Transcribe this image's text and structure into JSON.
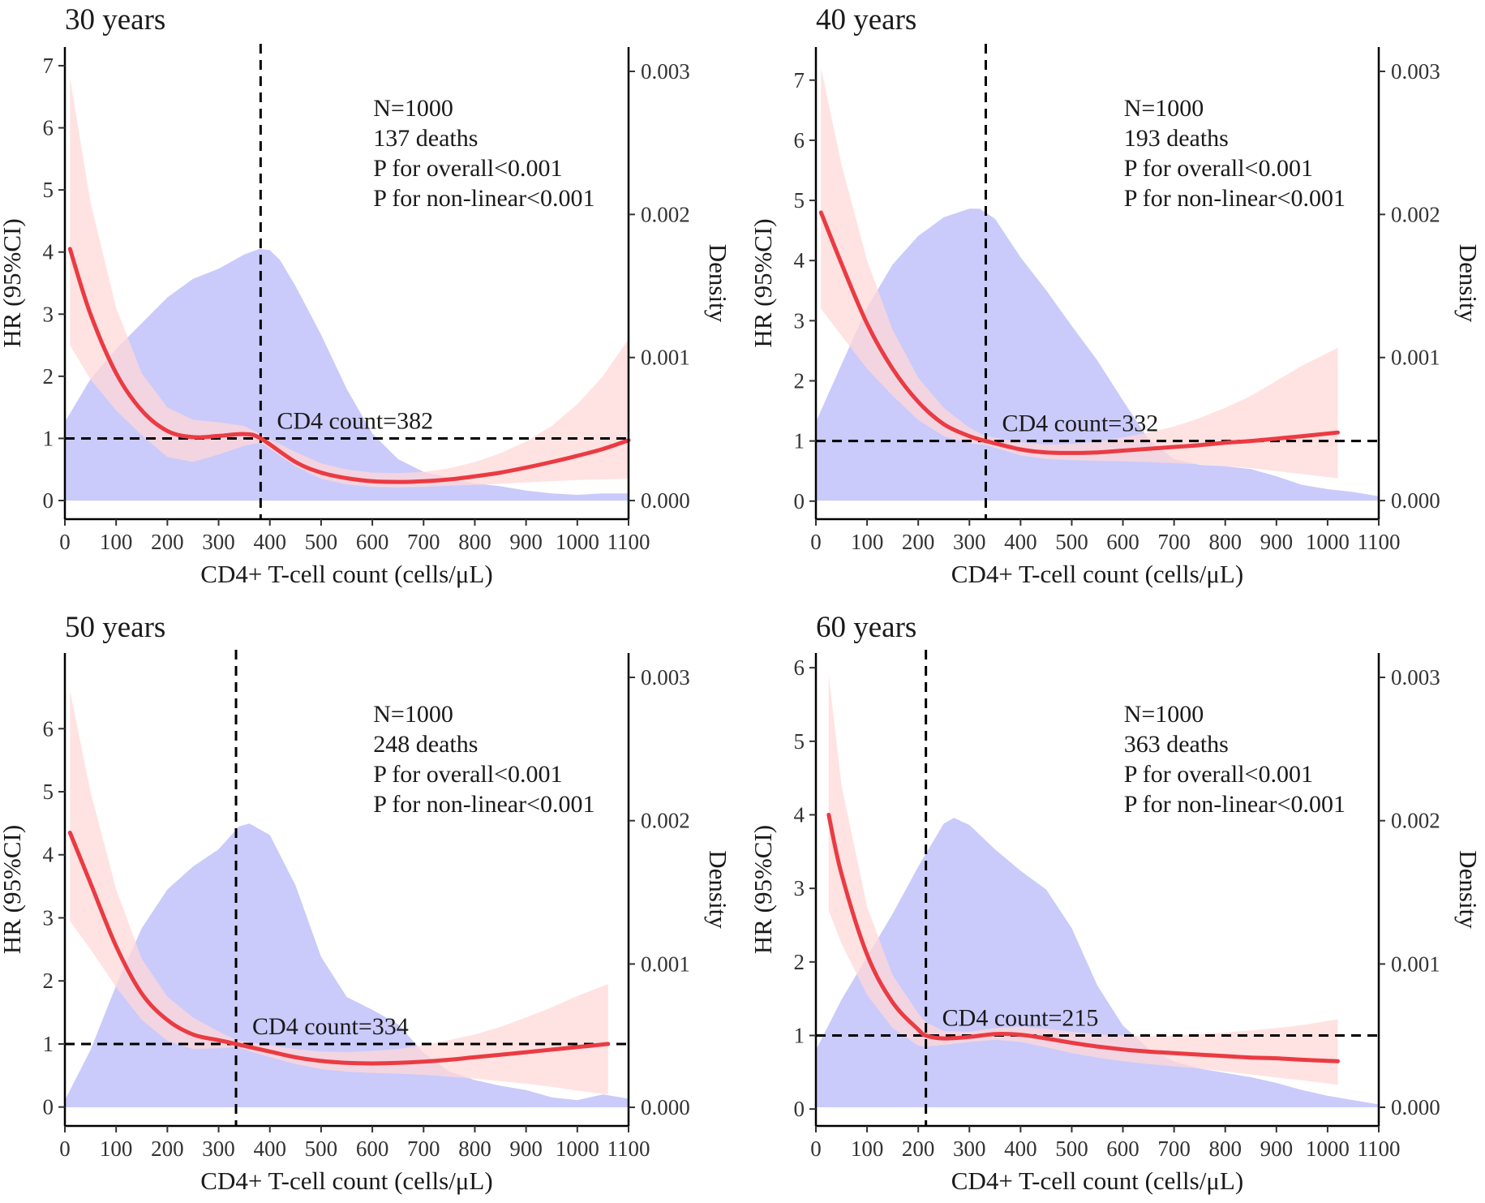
{
  "colors": {
    "density_fill": "#c7c7fb",
    "ci_fill": "#ffd8d8",
    "hr_line": "#ea3b43",
    "reference": "#000000"
  },
  "chart_data": [
    {
      "type": "line",
      "title": "30 years",
      "xlabel": "CD4+ T-cell count (cells/μL)",
      "ylabel": "HR (95%CI)",
      "y2label": "Density",
      "xlim": [
        0,
        1100
      ],
      "ylim": [
        -0.3,
        7.3
      ],
      "y2lim": [
        -0.00013,
        0.00317
      ],
      "xticks": [
        0,
        100,
        200,
        300,
        400,
        500,
        600,
        700,
        800,
        900,
        1000,
        1100
      ],
      "yticks": [
        0,
        1,
        2,
        3,
        4,
        5,
        6,
        7
      ],
      "y2ticks": [
        "0.000",
        "0.001",
        "0.002",
        "0.003"
      ],
      "annotation": [
        "N=1000",
        "137 deaths",
        "P for overall<0.001",
        "P for non-linear<0.001"
      ],
      "cutoff": 382,
      "cutoff_label": "CD4 count=382",
      "reference_hr": 1,
      "hr": {
        "x": [
          10,
          50,
          100,
          150,
          200,
          250,
          300,
          350,
          382,
          450,
          500,
          550,
          600,
          650,
          700,
          750,
          800,
          850,
          900,
          950,
          1000,
          1050,
          1100
        ],
        "y": [
          4.05,
          3.0,
          2.05,
          1.45,
          1.12,
          1.02,
          1.04,
          1.07,
          1.0,
          0.62,
          0.45,
          0.36,
          0.31,
          0.3,
          0.31,
          0.34,
          0.39,
          0.45,
          0.53,
          0.62,
          0.72,
          0.83,
          0.97
        ],
        "lower": [
          2.5,
          1.95,
          1.45,
          1.05,
          0.7,
          0.62,
          0.74,
          0.88,
          0.93,
          0.55,
          0.35,
          0.26,
          0.22,
          0.21,
          0.22,
          0.24,
          0.25,
          0.27,
          0.29,
          0.31,
          0.33,
          0.34,
          0.35
        ],
        "upper": [
          6.8,
          4.8,
          3.1,
          2.05,
          1.5,
          1.3,
          1.26,
          1.2,
          1.07,
          0.78,
          0.6,
          0.5,
          0.45,
          0.44,
          0.46,
          0.52,
          0.62,
          0.76,
          0.95,
          1.2,
          1.55,
          2.0,
          2.6
        ]
      },
      "density": {
        "x": [
          0,
          50,
          100,
          150,
          200,
          250,
          300,
          350,
          380,
          400,
          420,
          450,
          500,
          550,
          600,
          650,
          700,
          750,
          800,
          850,
          900,
          950,
          1000,
          1050,
          1100
        ],
        "y": [
          0.00055,
          0.00085,
          0.00106,
          0.00124,
          0.00142,
          0.00155,
          0.00162,
          0.00172,
          0.00176,
          0.00175,
          0.00168,
          0.0015,
          0.00116,
          0.00078,
          0.00047,
          0.00029,
          0.0002,
          0.00016,
          0.00012,
          0.0001,
          7e-05,
          5e-05,
          4e-05,
          5e-05,
          5e-05
        ]
      }
    },
    {
      "type": "line",
      "title": "40 years",
      "xlabel": "CD4+ T-cell count (cells/μL)",
      "ylabel": "HR (95%CI)",
      "y2label": "Density",
      "xlim": [
        0,
        1100
      ],
      "ylim": [
        -0.3,
        7.55
      ],
      "y2lim": [
        -0.00013,
        0.00317
      ],
      "xticks": [
        0,
        100,
        200,
        300,
        400,
        500,
        600,
        700,
        800,
        900,
        1000,
        1100
      ],
      "yticks": [
        0,
        1,
        2,
        3,
        4,
        5,
        6,
        7
      ],
      "y2ticks": [
        "0.000",
        "0.001",
        "0.002",
        "0.003"
      ],
      "annotation": [
        "N=1000",
        "193 deaths",
        "P for overall<0.001",
        "P for non-linear<0.001"
      ],
      "cutoff": 332,
      "cutoff_label": "CD4 count=332",
      "reference_hr": 1,
      "hr": {
        "x": [
          10,
          50,
          100,
          150,
          200,
          250,
          300,
          332,
          400,
          450,
          500,
          550,
          600,
          650,
          700,
          750,
          800,
          850,
          900,
          950,
          1020
        ],
        "y": [
          4.8,
          3.95,
          2.95,
          2.2,
          1.65,
          1.28,
          1.08,
          1.0,
          0.86,
          0.81,
          0.8,
          0.81,
          0.84,
          0.87,
          0.9,
          0.93,
          0.97,
          1.0,
          1.04,
          1.08,
          1.14
        ],
        "lower": [
          3.2,
          2.75,
          2.2,
          1.75,
          1.35,
          1.08,
          0.96,
          0.93,
          0.76,
          0.7,
          0.68,
          0.67,
          0.66,
          0.65,
          0.63,
          0.61,
          0.58,
          0.55,
          0.5,
          0.45,
          0.38
        ],
        "upper": [
          7.2,
          5.6,
          4.0,
          2.85,
          2.05,
          1.55,
          1.22,
          1.08,
          0.98,
          0.94,
          0.95,
          0.99,
          1.06,
          1.14,
          1.24,
          1.38,
          1.55,
          1.75,
          2.0,
          2.25,
          2.55
        ]
      },
      "density": {
        "x": [
          0,
          50,
          100,
          150,
          200,
          250,
          300,
          320,
          350,
          400,
          450,
          500,
          550,
          600,
          650,
          700,
          750,
          800,
          850,
          900,
          950,
          1000,
          1050,
          1100
        ],
        "y": [
          0.00055,
          0.00095,
          0.00135,
          0.00165,
          0.00185,
          0.00198,
          0.00204,
          0.00204,
          0.00197,
          0.0017,
          0.00147,
          0.00122,
          0.00098,
          0.0007,
          0.00043,
          0.00029,
          0.00025,
          0.00024,
          0.00022,
          0.00017,
          0.00011,
          8e-05,
          6e-05,
          3e-05
        ]
      }
    },
    {
      "type": "line",
      "title": "50 years",
      "xlabel": "CD4+ T-cell count (cells/μL)",
      "ylabel": "HR (95%CI)",
      "y2label": "Density",
      "xlim": [
        0,
        1100
      ],
      "ylim": [
        -0.3,
        7.2
      ],
      "y2lim": [
        -0.00013,
        0.00317
      ],
      "xticks": [
        0,
        100,
        200,
        300,
        400,
        500,
        600,
        700,
        800,
        900,
        1000,
        1100
      ],
      "yticks": [
        0,
        1,
        2,
        3,
        4,
        5,
        6
      ],
      "y2ticks": [
        "0.000",
        "0.001",
        "0.002",
        "0.003"
      ],
      "annotation": [
        "N=1000",
        "248 deaths",
        "P for overall<0.001",
        "P for non-linear<0.001"
      ],
      "cutoff": 334,
      "cutoff_label": "CD4 count=334",
      "reference_hr": 1,
      "hr": {
        "x": [
          10,
          50,
          100,
          150,
          200,
          250,
          300,
          334,
          400,
          450,
          500,
          550,
          600,
          650,
          700,
          750,
          800,
          850,
          900,
          950,
          1000,
          1060
        ],
        "y": [
          4.35,
          3.55,
          2.55,
          1.8,
          1.38,
          1.15,
          1.06,
          1.0,
          0.88,
          0.79,
          0.73,
          0.7,
          0.69,
          0.7,
          0.72,
          0.75,
          0.79,
          0.83,
          0.87,
          0.91,
          0.95,
          1.0
        ],
        "lower": [
          2.95,
          2.5,
          1.9,
          1.38,
          1.05,
          0.92,
          0.93,
          0.95,
          0.79,
          0.68,
          0.6,
          0.56,
          0.54,
          0.53,
          0.51,
          0.48,
          0.45,
          0.41,
          0.37,
          0.32,
          0.26,
          0.2
        ],
        "upper": [
          6.6,
          5.0,
          3.45,
          2.35,
          1.75,
          1.42,
          1.2,
          1.06,
          0.98,
          0.92,
          0.88,
          0.87,
          0.89,
          0.92,
          0.98,
          1.06,
          1.15,
          1.27,
          1.42,
          1.58,
          1.76,
          1.95
        ]
      },
      "density": {
        "x": [
          0,
          50,
          100,
          150,
          200,
          250,
          300,
          340,
          360,
          400,
          450,
          500,
          550,
          600,
          650,
          700,
          750,
          800,
          850,
          900,
          950,
          1000,
          1050,
          1100
        ],
        "y": [
          5e-05,
          0.0004,
          0.00085,
          0.00125,
          0.00152,
          0.00168,
          0.0018,
          0.00196,
          0.00198,
          0.0019,
          0.00155,
          0.00105,
          0.00077,
          0.00068,
          0.00058,
          0.00038,
          0.00025,
          0.00019,
          0.00015,
          0.00012,
          7e-05,
          5e-05,
          9e-05,
          6e-05
        ]
      }
    },
    {
      "type": "line",
      "title": "60 years",
      "xlabel": "CD4+ T-cell count (cells/μL)",
      "ylabel": "HR (95%CI)",
      "y2label": "Density",
      "xlim": [
        0,
        1100
      ],
      "ylim": [
        -0.23,
        6.2
      ],
      "y2lim": [
        -0.00013,
        0.00317
      ],
      "xticks": [
        0,
        100,
        200,
        300,
        400,
        500,
        600,
        700,
        800,
        900,
        1000,
        1100
      ],
      "yticks": [
        0,
        1,
        2,
        3,
        4,
        5,
        6
      ],
      "y2ticks": [
        "0.000",
        "0.001",
        "0.002",
        "0.003"
      ],
      "annotation": [
        "N=1000",
        "363 deaths",
        "P for overall<0.001",
        "P for non-linear<0.001"
      ],
      "cutoff": 215,
      "cutoff_label": "CD4 count=215",
      "reference_hr": 1,
      "hr": {
        "x": [
          25,
          50,
          100,
          150,
          200,
          215,
          250,
          300,
          350,
          400,
          450,
          500,
          550,
          600,
          650,
          700,
          750,
          800,
          850,
          900,
          950,
          1020
        ],
        "y": [
          4.0,
          3.2,
          2.1,
          1.45,
          1.08,
          1.0,
          0.96,
          0.98,
          1.02,
          1.01,
          0.96,
          0.9,
          0.85,
          0.81,
          0.78,
          0.76,
          0.74,
          0.72,
          0.7,
          0.69,
          0.67,
          0.65
        ],
        "lower": [
          2.7,
          2.25,
          1.55,
          1.1,
          0.86,
          0.85,
          0.87,
          0.91,
          0.94,
          0.91,
          0.84,
          0.76,
          0.7,
          0.65,
          0.61,
          0.58,
          0.55,
          0.51,
          0.47,
          0.43,
          0.39,
          0.33
        ],
        "upper": [
          5.9,
          4.4,
          2.75,
          1.82,
          1.3,
          1.18,
          1.06,
          1.05,
          1.1,
          1.12,
          1.09,
          1.05,
          1.02,
          1.0,
          0.99,
          1.0,
          1.02,
          1.04,
          1.07,
          1.1,
          1.14,
          1.22
        ]
      },
      "density": {
        "x": [
          0,
          50,
          100,
          150,
          200,
          250,
          270,
          300,
          350,
          400,
          450,
          500,
          550,
          600,
          650,
          700,
          750,
          800,
          850,
          900,
          950,
          1000,
          1050,
          1100
        ],
        "y": [
          0.0004,
          0.00075,
          0.00105,
          0.00135,
          0.00168,
          0.00198,
          0.00202,
          0.00197,
          0.0018,
          0.00165,
          0.00152,
          0.00125,
          0.00085,
          0.00057,
          0.00041,
          0.00032,
          0.00027,
          0.00024,
          0.00021,
          0.00017,
          0.00012,
          8e-05,
          5e-05,
          2e-05
        ]
      }
    }
  ]
}
